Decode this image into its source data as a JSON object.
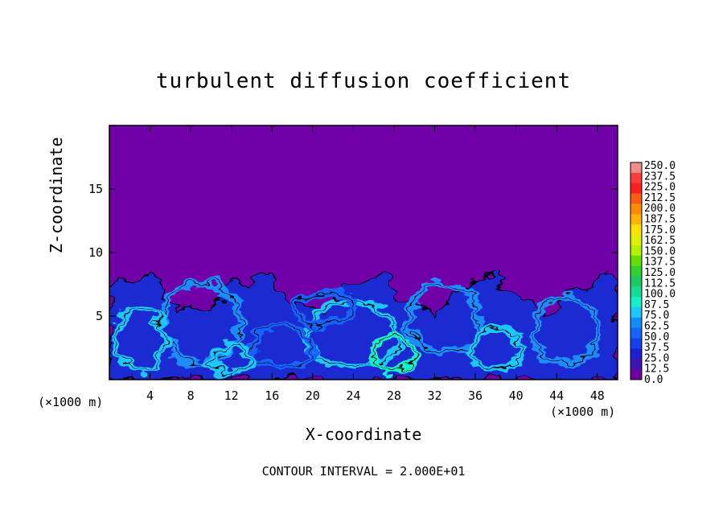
{
  "chart_data": {
    "type": "heatmap",
    "title": "turbulent diffusion coefficient",
    "xlabel": "X-coordinate",
    "ylabel": "Z-coordinate",
    "x_unit": "(×1000 m)",
    "xlim": [
      0,
      50
    ],
    "ylim": [
      0,
      20
    ],
    "x_ticks": [
      4,
      8,
      12,
      16,
      20,
      24,
      28,
      32,
      36,
      40,
      44,
      48
    ],
    "y_ticks": [
      5,
      10,
      15
    ],
    "colorbar_levels": [
      "250.0",
      "237.5",
      "225.0",
      "212.5",
      "200.0",
      "187.5",
      "175.0",
      "162.5",
      "150.0",
      "137.5",
      "125.0",
      "112.5",
      "100.0",
      "87.5",
      "75.0",
      "62.5",
      "50.0",
      "37.5",
      "25.0",
      "12.5",
      "0.0"
    ],
    "colorbar_colors": [
      "#f08c8c",
      "#ff3c3c",
      "#ff1e1e",
      "#ff5a14",
      "#ff8c00",
      "#ffb400",
      "#ffe000",
      "#e0f000",
      "#b4f000",
      "#64e000",
      "#32d232",
      "#1ec864",
      "#14dc96",
      "#14f0c8",
      "#1ec8ff",
      "#148cff",
      "#1464ff",
      "#1440f0",
      "#1e1ed2",
      "#3c14b4",
      "#6e00a0"
    ],
    "background_value": "0.0",
    "turbulent_layer_top_z": 8.5,
    "contour_interval": "CONTOUR INTERVAL = 2.000E+01"
  }
}
